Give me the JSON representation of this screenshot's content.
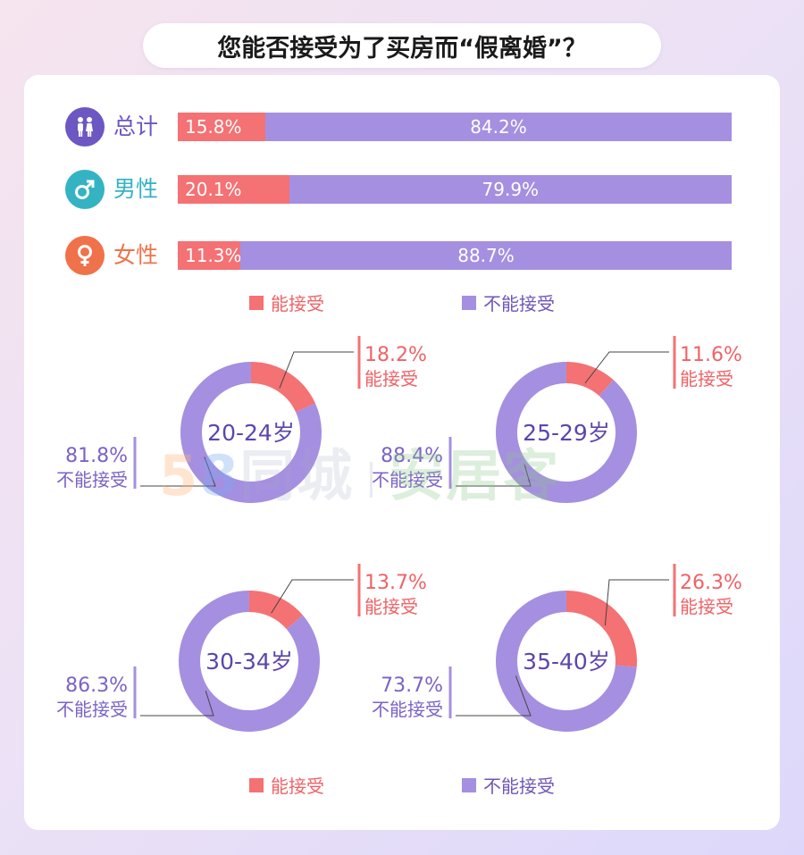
{
  "title": "您能否接受为了买房而“假离婚”？",
  "colors": {
    "accept": "#f47174",
    "reject": "#a58fe0",
    "accept_text": "#f06266",
    "reject_text": "#7b63c6"
  },
  "legend": {
    "accept": "能接受",
    "reject": "不能接受"
  },
  "watermark": {
    "five": "5",
    "eight": "8",
    "city": "同城",
    "brand": "安居客"
  },
  "chart_data": [
    {
      "type": "bar",
      "orientation": "horizontal",
      "stacked": true,
      "categories": [
        "总计",
        "男性",
        "女性"
      ],
      "series": [
        {
          "name": "能接受",
          "values": [
            15.8,
            20.1,
            11.3
          ]
        },
        {
          "name": "不能接受",
          "values": [
            84.2,
            79.9,
            88.7
          ]
        }
      ],
      "value_labels": {
        "accept": [
          "15.8%",
          "20.1%",
          "11.3%"
        ],
        "reject": [
          "84.2%",
          "79.9%",
          "88.7%"
        ]
      },
      "category_icons": [
        "people-icon",
        "male-icon",
        "female-icon"
      ],
      "category_colors": [
        "#6d57c2",
        "#34b3c3",
        "#f0724a"
      ],
      "legend_position": "bottom"
    },
    {
      "type": "pie",
      "donut": true,
      "center_label": "20-24岁",
      "labels": [
        "能接受",
        "不能接受"
      ],
      "values": [
        18.2,
        81.8
      ],
      "value_labels": [
        "18.2%",
        "81.8%"
      ]
    },
    {
      "type": "pie",
      "donut": true,
      "center_label": "25-29岁",
      "labels": [
        "能接受",
        "不能接受"
      ],
      "values": [
        11.6,
        88.4
      ],
      "value_labels": [
        "11.6%",
        "88.4%"
      ]
    },
    {
      "type": "pie",
      "donut": true,
      "center_label": "30-34岁",
      "labels": [
        "能接受",
        "不能接受"
      ],
      "values": [
        13.7,
        86.3
      ],
      "value_labels": [
        "13.7%",
        "86.3%"
      ]
    },
    {
      "type": "pie",
      "donut": true,
      "center_label": "35-40岁",
      "labels": [
        "能接受",
        "不能接受"
      ],
      "values": [
        26.3,
        73.7
      ],
      "value_labels": [
        "26.3%",
        "73.7%"
      ],
      "legend_position": "bottom"
    }
  ]
}
